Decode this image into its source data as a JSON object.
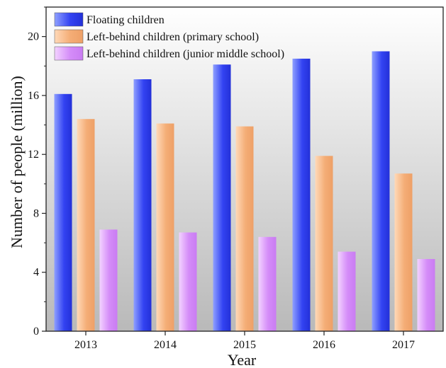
{
  "chart_data": {
    "type": "bar",
    "title": "",
    "xlabel": "Year",
    "ylabel": "Number of people (million)",
    "categories": [
      "2013",
      "2014",
      "2015",
      "2016",
      "2017"
    ],
    "ylim": [
      0,
      22
    ],
    "yticks": [
      0,
      4,
      8,
      12,
      16,
      20
    ],
    "grid": false,
    "legend_position": "top-left",
    "series": [
      {
        "name": "Floating children",
        "values": [
          16.1,
          17.1,
          18.1,
          18.5,
          19.0
        ],
        "color": "#3a4cf0"
      },
      {
        "name": "Left-behind children (primary school)",
        "values": [
          14.4,
          14.1,
          13.9,
          11.9,
          10.7
        ],
        "color": "#f5b483"
      },
      {
        "name": "Left-behind children (junior middle school)",
        "values": [
          6.9,
          6.7,
          6.4,
          5.4,
          4.9
        ],
        "color": "#d38ef6"
      }
    ]
  }
}
